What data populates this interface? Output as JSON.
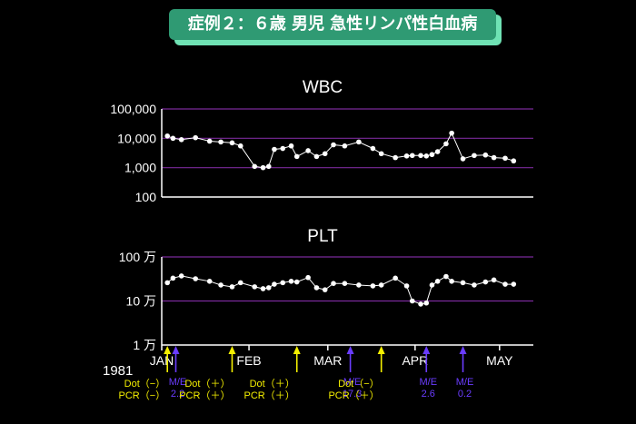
{
  "page_title": "症例２：６歳 男児 急性リンパ性白血病",
  "year_label": "1981",
  "colors": {
    "grid": "#7a2a9a",
    "axis": "#ffffff",
    "yellow_arrow": "#f5f000",
    "purple_arrow": "#6a3cff",
    "title_bg": "#2f9a73",
    "title_shadow": "#6fe2b4"
  },
  "chart_data": [
    {
      "type": "line",
      "title": "WBC",
      "scale": "log",
      "ylim": [
        100,
        100000
      ],
      "ytick_labels": [
        "100,000",
        "10,000",
        "1,000",
        "100"
      ],
      "ytick_values": [
        100000,
        10000,
        1000,
        100
      ],
      "xlim": [
        0,
        132
      ],
      "series": [
        {
          "x": [
            2,
            4,
            7,
            12,
            17,
            21,
            25,
            28,
            33,
            36,
            38,
            40,
            43,
            46,
            48,
            52,
            55,
            58,
            61,
            65,
            70,
            75,
            78,
            83,
            87,
            89,
            92,
            94,
            96,
            98,
            101,
            103,
            107,
            111,
            115,
            118,
            122,
            125
          ],
          "y": [
            12000,
            10000,
            9000,
            10500,
            8000,
            7500,
            7000,
            5500,
            1100,
            1000,
            1100,
            4200,
            4500,
            5500,
            2400,
            3800,
            2400,
            3000,
            6000,
            5500,
            7500,
            4500,
            3000,
            2200,
            2500,
            2600,
            2600,
            2500,
            2800,
            3500,
            6500,
            15000,
            2000,
            2600,
            2700,
            2200,
            2100,
            1700
          ]
        }
      ]
    },
    {
      "type": "line",
      "title": "PLT",
      "scale": "log",
      "ylim": [
        10000,
        1000000
      ],
      "ytick_labels": [
        "100 万",
        "10 万",
        "1 万"
      ],
      "ytick_values": [
        1000000,
        100000,
        10000
      ],
      "xlim": [
        0,
        132
      ],
      "series": [
        {
          "x": [
            2,
            4,
            7,
            12,
            17,
            21,
            25,
            28,
            33,
            36,
            38,
            40,
            43,
            46,
            48,
            52,
            55,
            58,
            61,
            65,
            70,
            75,
            78,
            83,
            87,
            89,
            92,
            94,
            96,
            98,
            101,
            103,
            107,
            111,
            115,
            118,
            122,
            125
          ],
          "y": [
            260000,
            330000,
            370000,
            320000,
            280000,
            230000,
            210000,
            260000,
            210000,
            190000,
            200000,
            240000,
            260000,
            280000,
            270000,
            340000,
            200000,
            180000,
            250000,
            250000,
            230000,
            220000,
            230000,
            330000,
            220000,
            100000,
            85000,
            90000,
            230000,
            280000,
            360000,
            280000,
            260000,
            230000,
            270000,
            300000,
            240000,
            240000
          ]
        }
      ]
    }
  ],
  "x_axis": {
    "months": [
      {
        "label": "JAN",
        "x": 0
      },
      {
        "label": "FEB",
        "x": 31
      },
      {
        "label": "MAR",
        "x": 59
      },
      {
        "label": "APR",
        "x": 90
      },
      {
        "label": "MAY",
        "x": 120
      }
    ]
  },
  "events": [
    {
      "type": "dot_pcr",
      "x": 2,
      "dot": "Dot（−）",
      "pcr": "PCR（−）"
    },
    {
      "type": "me",
      "x": 5,
      "label": "M/E",
      "value": "2.2"
    },
    {
      "type": "dot_pcr",
      "x": 25,
      "dot": "Dot（＋）",
      "pcr": "PCR（＋）"
    },
    {
      "type": "dot_pcr",
      "x": 48,
      "dot": "Dot（＋）",
      "pcr": "PCR（＋）"
    },
    {
      "type": "me",
      "x": 67,
      "label": "M/E",
      "value": "17.3"
    },
    {
      "type": "dot_pcr",
      "x": 78,
      "dot": "Dot（−）",
      "pcr": "PCR（＋）"
    },
    {
      "type": "me",
      "x": 94,
      "label": "M/E",
      "value": "2.6"
    },
    {
      "type": "me",
      "x": 107,
      "label": "M/E",
      "value": "0.2"
    }
  ]
}
